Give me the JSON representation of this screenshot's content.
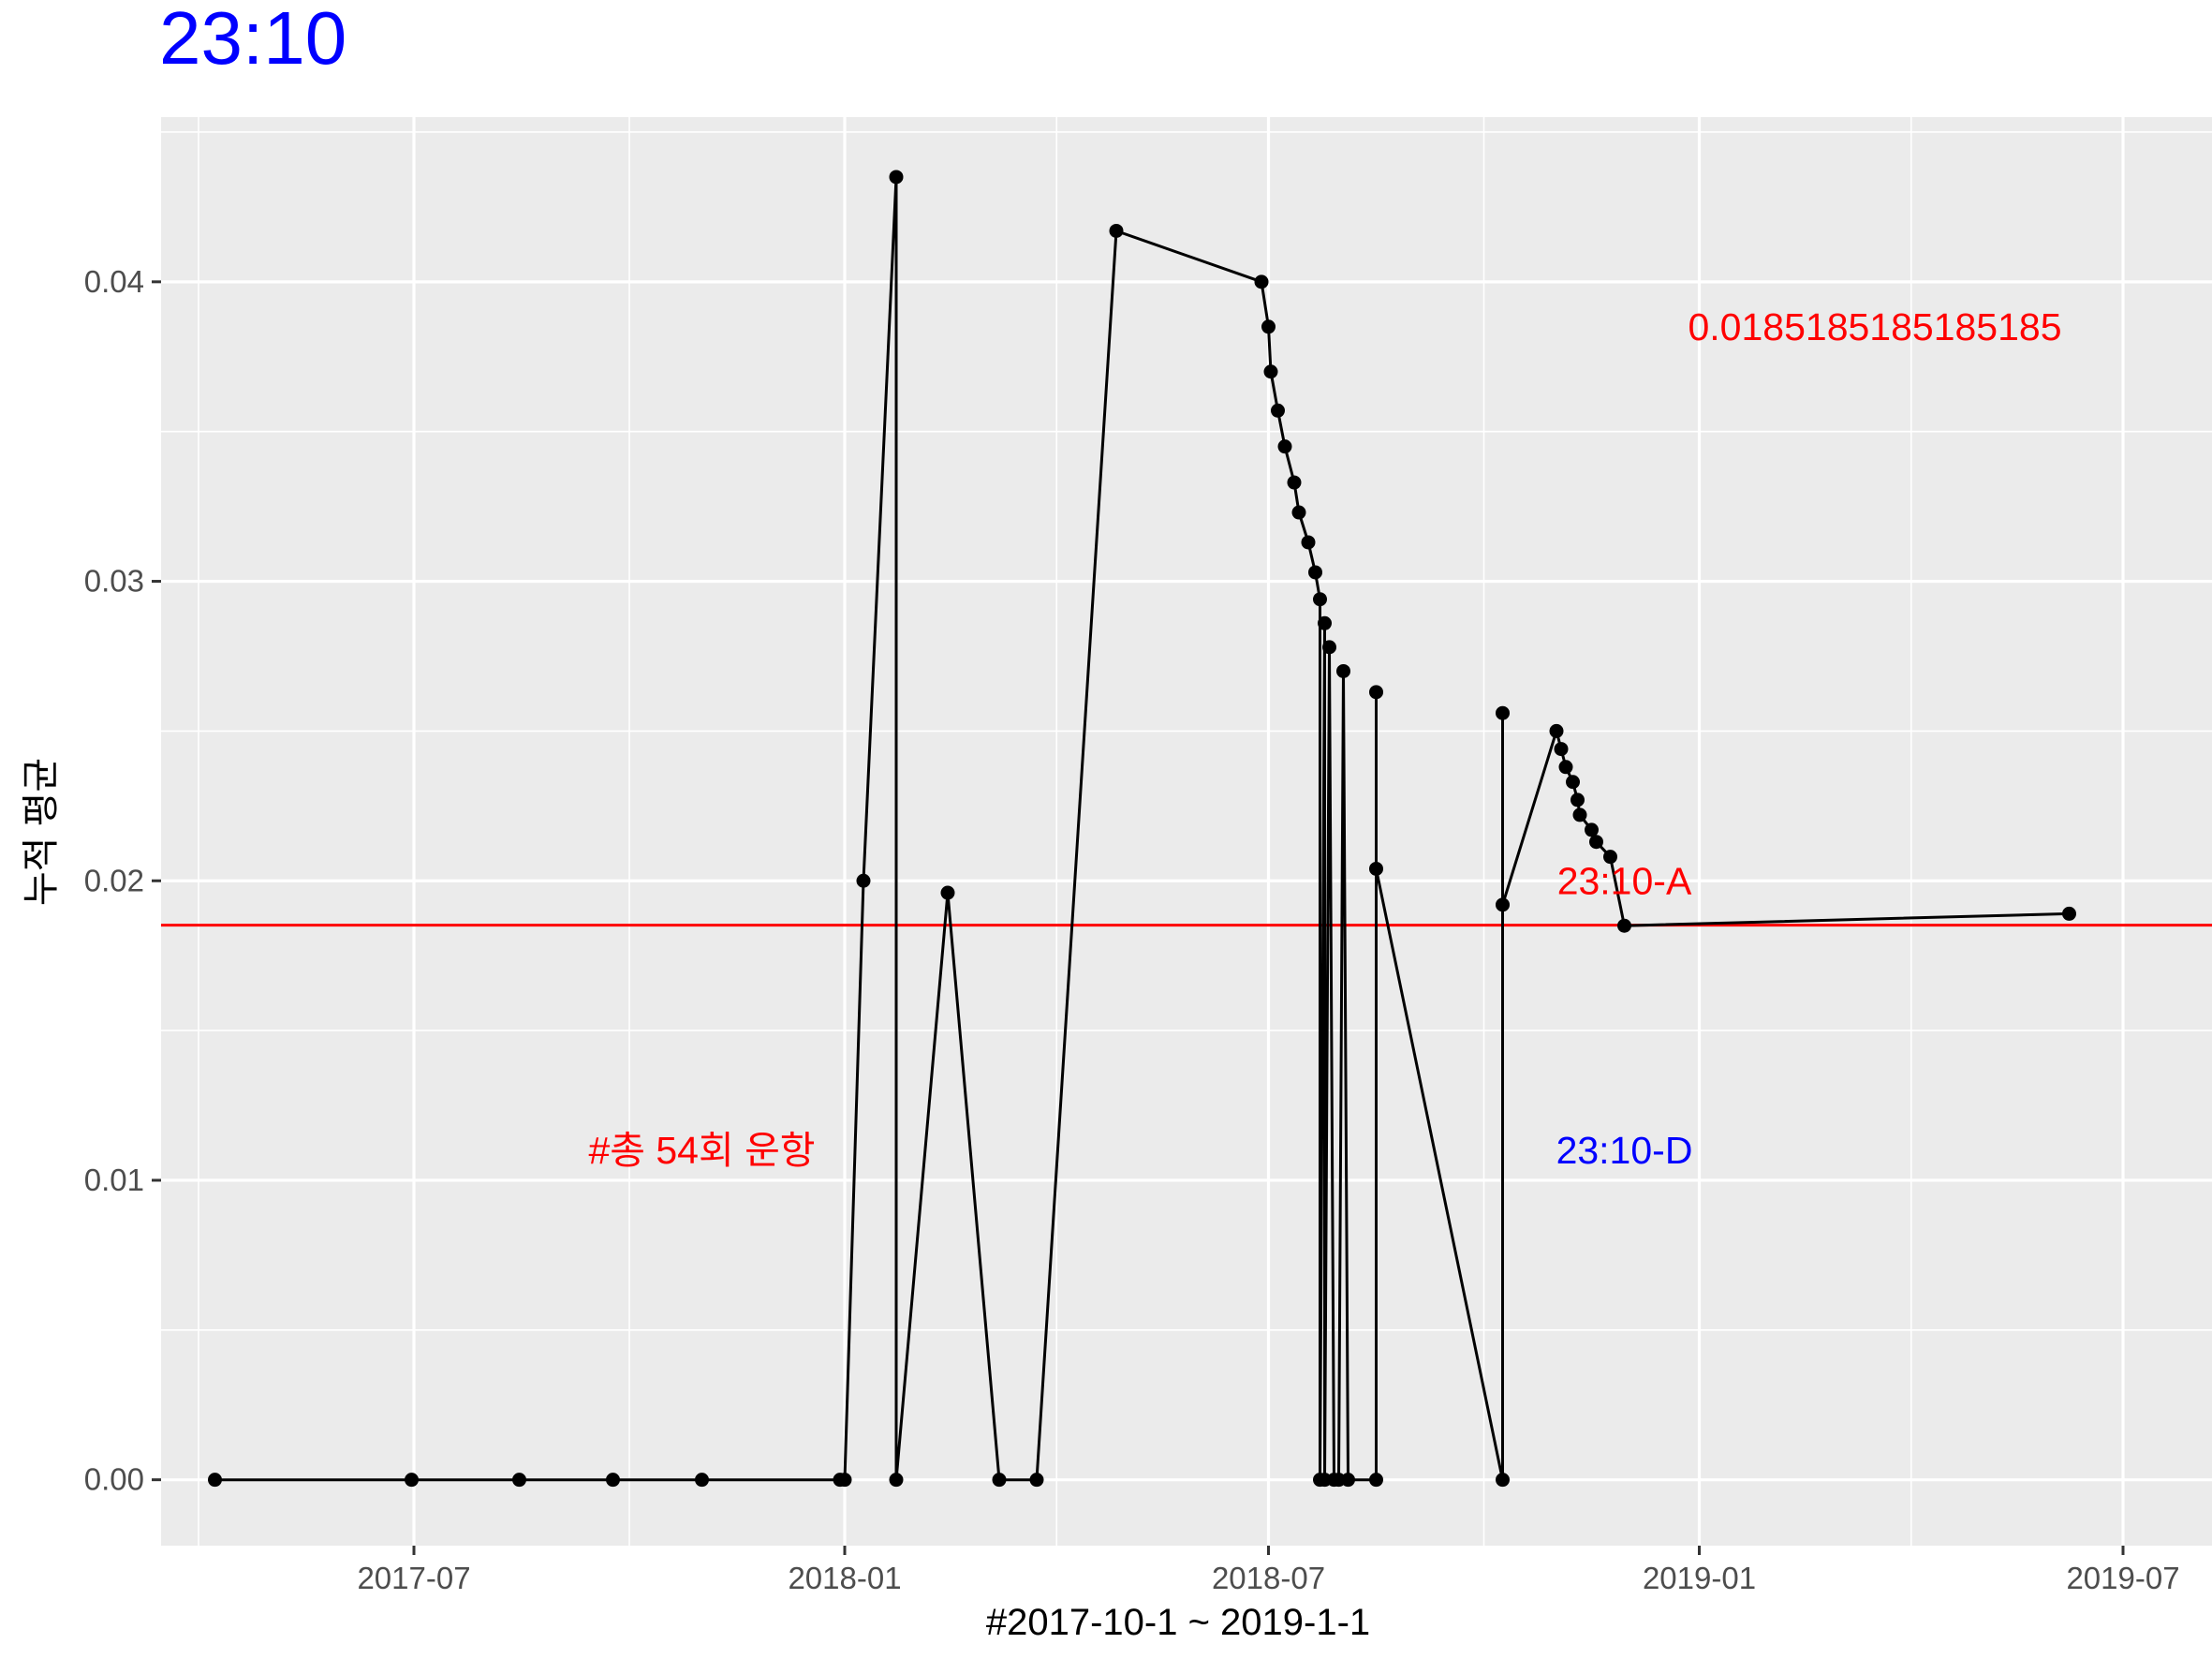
{
  "chart_data": {
    "type": "line",
    "title": "23:10",
    "xlabel": "#2017-10-1 ~ 2019-1-1",
    "ylabel": "누적 평균",
    "x_ticks": [
      "2017-07",
      "2018-01",
      "2018-07",
      "2019-01",
      "2019-07"
    ],
    "y_ticks": [
      "0.00",
      "0.01",
      "0.02",
      "0.03",
      "0.04"
    ],
    "xlim": [
      "2017-03-15",
      "2019-08-08"
    ],
    "ylim": [
      -0.0022,
      0.0455
    ],
    "grid": true,
    "series": [
      {
        "points": [
          [
            "2017-04-07",
            0.0
          ],
          [
            "2017-06-30",
            0.0
          ],
          [
            "2017-08-15",
            0.0
          ],
          [
            "2017-09-24",
            0.0
          ],
          [
            "2017-11-01",
            0.0
          ],
          [
            "2017-12-30",
            0.0
          ],
          [
            "2018-01-01",
            0.0
          ],
          [
            "2018-01-09",
            0.02
          ],
          [
            "2018-01-23",
            0.0435
          ],
          [
            "2018-01-23",
            0.0
          ],
          [
            "2018-02-14",
            0.0196
          ],
          [
            "2018-03-08",
            0.0
          ],
          [
            "2018-03-24",
            0.0
          ],
          [
            "2018-04-27",
            0.0417
          ],
          [
            "2018-06-28",
            0.04
          ],
          [
            "2018-07-01",
            0.0385
          ],
          [
            "2018-07-02",
            0.037
          ],
          [
            "2018-07-05",
            0.0357
          ],
          [
            "2018-07-08",
            0.0345
          ],
          [
            "2018-07-12",
            0.0333
          ],
          [
            "2018-07-14",
            0.0323
          ],
          [
            "2018-07-18",
            0.0313
          ],
          [
            "2018-07-21",
            0.0303
          ],
          [
            "2018-07-23",
            0.0294
          ],
          [
            "2018-07-23",
            0.0
          ],
          [
            "2018-07-25",
            0.0286
          ],
          [
            "2018-07-25",
            0.0
          ],
          [
            "2018-07-27",
            0.0278
          ],
          [
            "2018-07-29",
            0.0
          ],
          [
            "2018-07-31",
            0.0
          ],
          [
            "2018-08-02",
            0.027
          ],
          [
            "2018-08-04",
            0.0
          ],
          [
            "2018-08-16",
            0.0
          ],
          [
            "2018-08-16",
            0.0263
          ],
          [
            "2018-08-16",
            0.0204
          ],
          [
            "2018-10-09",
            0.0
          ],
          [
            "2018-10-09",
            0.0256
          ],
          [
            "2018-10-09",
            0.0192
          ],
          [
            "2018-11-01",
            0.025
          ],
          [
            "2018-11-03",
            0.0244
          ],
          [
            "2018-11-05",
            0.0238
          ],
          [
            "2018-11-08",
            0.0233
          ],
          [
            "2018-11-10",
            0.0227
          ],
          [
            "2018-11-11",
            0.0222
          ],
          [
            "2018-11-16",
            0.0217
          ],
          [
            "2018-11-18",
            0.0213
          ],
          [
            "2018-11-24",
            0.0208
          ],
          [
            "2018-11-30",
            0.0185
          ],
          [
            "2019-06-08",
            0.0189
          ]
        ]
      }
    ],
    "hline": {
      "y": 0.018518518,
      "color": "#ff0000"
    },
    "annotations": [
      {
        "text": "0.0185185185185185",
        "x": "2019-03-17",
        "y": 0.0385,
        "color": "#ff0000"
      },
      {
        "text": "23:10-A",
        "x": "2018-11-30",
        "y": 0.02,
        "color": "#ff0000"
      },
      {
        "text": "23:10-D",
        "x": "2018-11-30",
        "y": 0.011,
        "color": "#0000ff"
      },
      {
        "text": "#총 54회 운항",
        "x": "2017-11-01",
        "y": 0.011,
        "color": "#ff0000"
      }
    ]
  }
}
